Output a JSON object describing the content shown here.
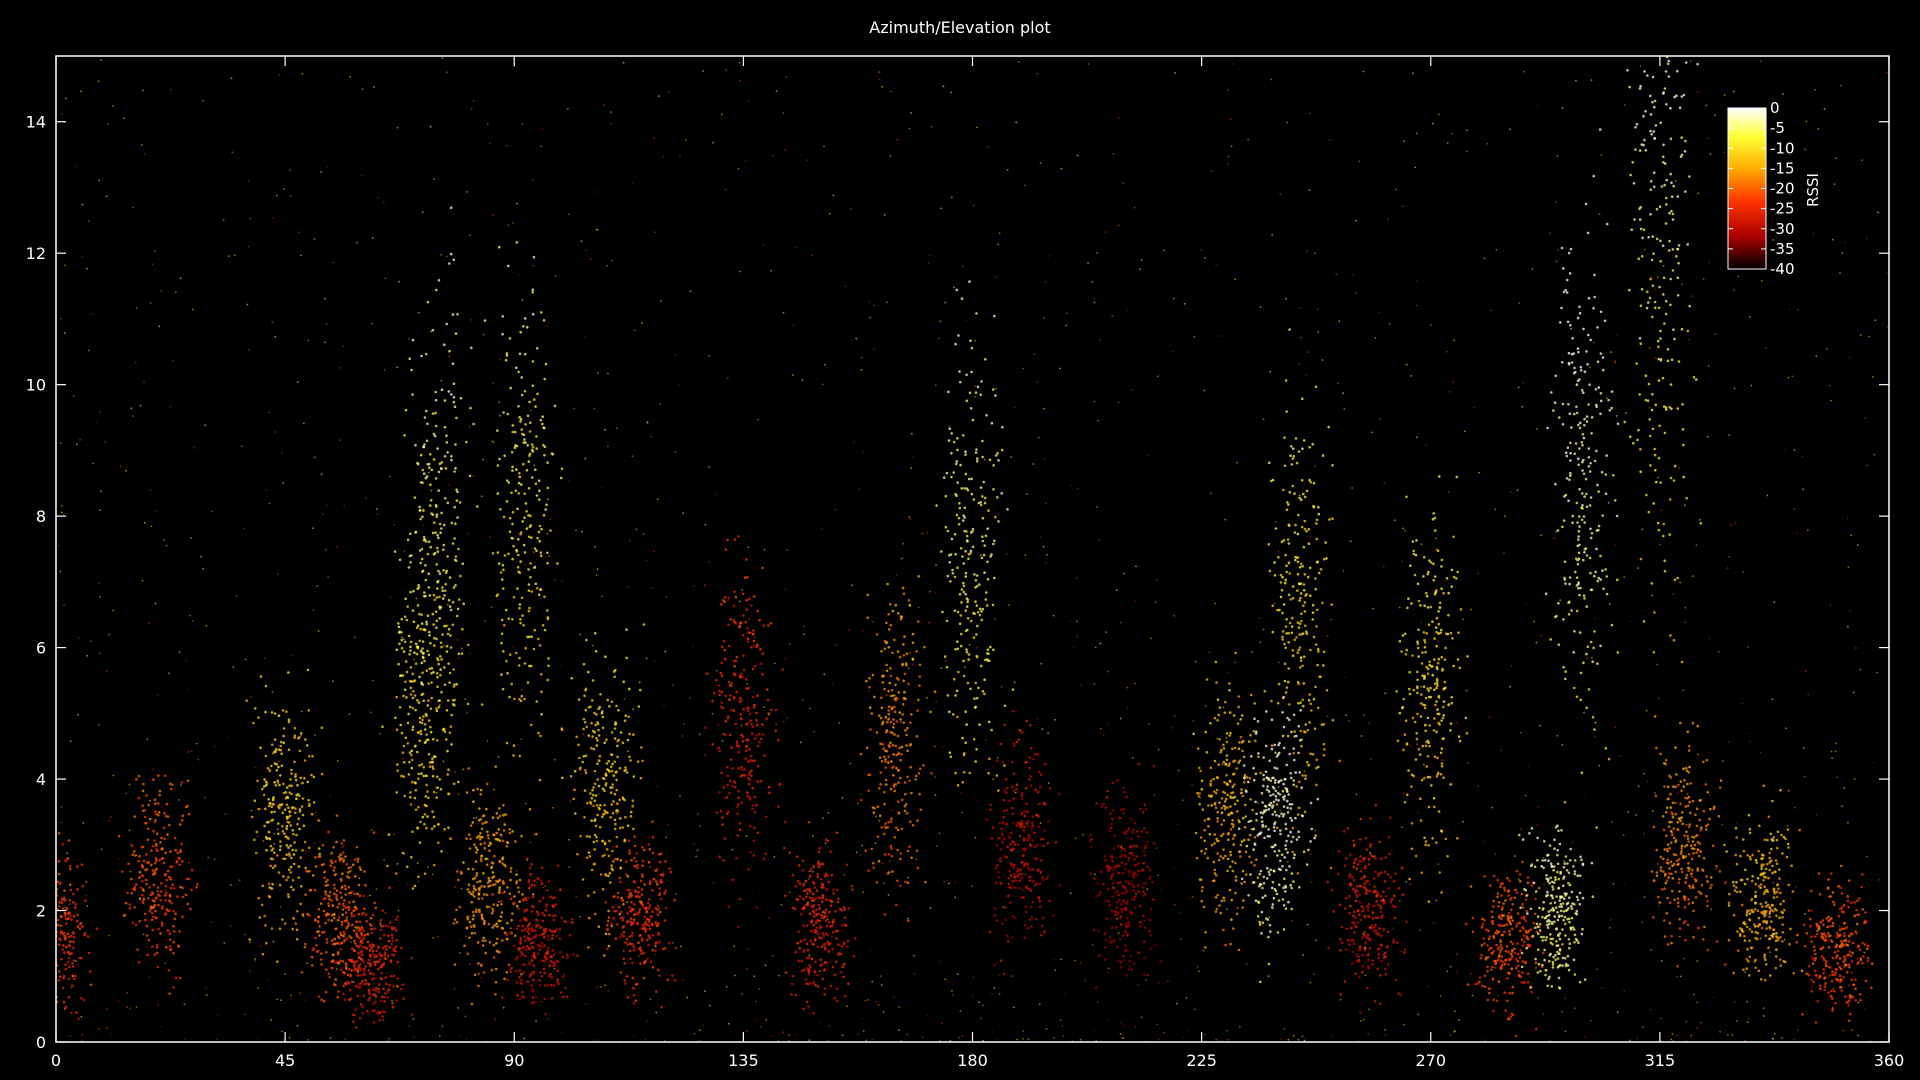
{
  "chart_data": {
    "type": "scatter",
    "title": "Azimuth/Elevation plot",
    "xlabel": "",
    "ylabel": "",
    "xlim": [
      0,
      360
    ],
    "ylim": [
      0,
      15
    ],
    "x_ticks": [
      0,
      45,
      90,
      135,
      180,
      225,
      270,
      315,
      360
    ],
    "y_ticks": [
      0,
      2,
      4,
      6,
      8,
      10,
      12,
      14
    ],
    "grid": false,
    "background": "#000000",
    "colorbar": {
      "label": "RSSI",
      "range": [
        -40,
        0
      ],
      "ticks": [
        "0",
        "-5",
        "-10",
        "-15",
        "-20",
        "-25",
        "-30",
        "-35",
        "-40"
      ],
      "placement": "top-right",
      "stops": [
        "#ffffff",
        "#ffff00",
        "#ff9900",
        "#ff2a00",
        "#b00000",
        "#000000"
      ]
    },
    "density_clusters": [
      {
        "azimuth": 0,
        "elevation": 1.8,
        "rssi": -24
      },
      {
        "azimuth": 20,
        "elevation": 2.5,
        "rssi": -22
      },
      {
        "azimuth": 45,
        "elevation": 3.5,
        "rssi": -12
      },
      {
        "azimuth": 55,
        "elevation": 2.0,
        "rssi": -20
      },
      {
        "azimuth": 62,
        "elevation": 1.2,
        "rssi": -26
      },
      {
        "azimuth": 72,
        "elevation": 5.0,
        "rssi": -10
      },
      {
        "azimuth": 75,
        "elevation": 8.0,
        "rssi": -6
      },
      {
        "azimuth": 85,
        "elevation": 2.5,
        "rssi": -16
      },
      {
        "azimuth": 92,
        "elevation": 8.0,
        "rssi": -8
      },
      {
        "azimuth": 95,
        "elevation": 1.5,
        "rssi": -28
      },
      {
        "azimuth": 108,
        "elevation": 4.0,
        "rssi": -12
      },
      {
        "azimuth": 115,
        "elevation": 2.0,
        "rssi": -24
      },
      {
        "azimuth": 135,
        "elevation": 5.0,
        "rssi": -26
      },
      {
        "azimuth": 150,
        "elevation": 1.8,
        "rssi": -26
      },
      {
        "azimuth": 165,
        "elevation": 4.5,
        "rssi": -18
      },
      {
        "azimuth": 180,
        "elevation": 7.4,
        "rssi": -6
      },
      {
        "azimuth": 190,
        "elevation": 3.0,
        "rssi": -30
      },
      {
        "azimuth": 210,
        "elevation": 2.5,
        "rssi": -32
      },
      {
        "azimuth": 230,
        "elevation": 3.5,
        "rssi": -14
      },
      {
        "azimuth": 240,
        "elevation": 3.3,
        "rssi": -2
      },
      {
        "azimuth": 245,
        "elevation": 6.5,
        "rssi": -10
      },
      {
        "azimuth": 258,
        "elevation": 2.0,
        "rssi": -28
      },
      {
        "azimuth": 270,
        "elevation": 5.5,
        "rssi": -10
      },
      {
        "azimuth": 285,
        "elevation": 1.5,
        "rssi": -22
      },
      {
        "azimuth": 295,
        "elevation": 2.0,
        "rssi": -4
      },
      {
        "azimuth": 300,
        "elevation": 8.5,
        "rssi": -3
      },
      {
        "azimuth": 315,
        "elevation": 12.5,
        "rssi": -4
      },
      {
        "azimuth": 320,
        "elevation": 3.0,
        "rssi": -18
      },
      {
        "azimuth": 335,
        "elevation": 2.2,
        "rssi": -14
      },
      {
        "azimuth": 350,
        "elevation": 1.5,
        "rssi": -22
      }
    ]
  }
}
